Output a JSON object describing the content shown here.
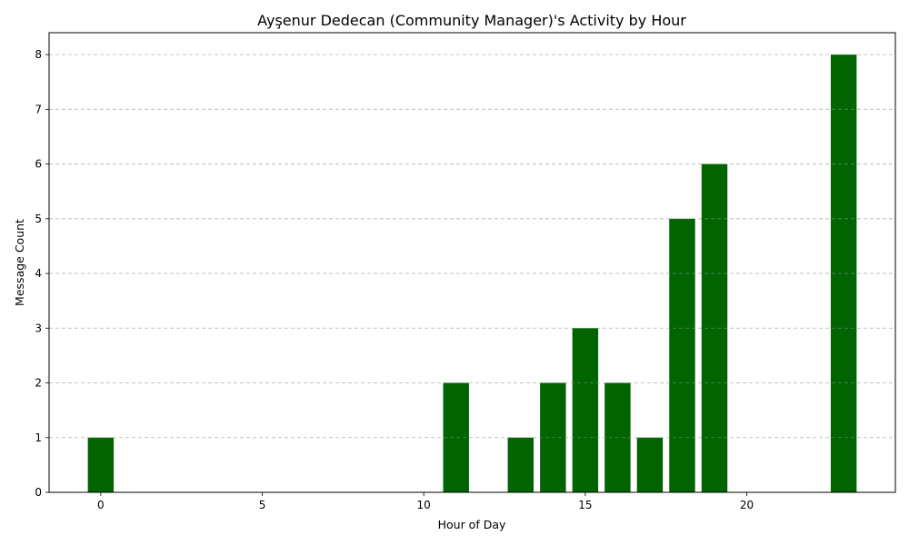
{
  "chart_data": {
    "type": "bar",
    "title": "Ayşenur Dedecan (Community Manager)'s Activity by Hour",
    "xlabel": "Hour of Day",
    "ylabel": "Message Count",
    "x": [
      0,
      11,
      13,
      14,
      15,
      16,
      17,
      18,
      19,
      23
    ],
    "values": [
      1,
      2,
      1,
      2,
      3,
      2,
      1,
      5,
      6,
      8
    ],
    "xlim": [
      -1.6,
      24.6
    ],
    "ylim": [
      0,
      8.4
    ],
    "xticks": [
      0,
      5,
      10,
      15,
      20
    ],
    "yticks": [
      0,
      1,
      2,
      3,
      4,
      5,
      6,
      7,
      8
    ],
    "grid": "y-dashed",
    "bar_color": "#006400"
  }
}
